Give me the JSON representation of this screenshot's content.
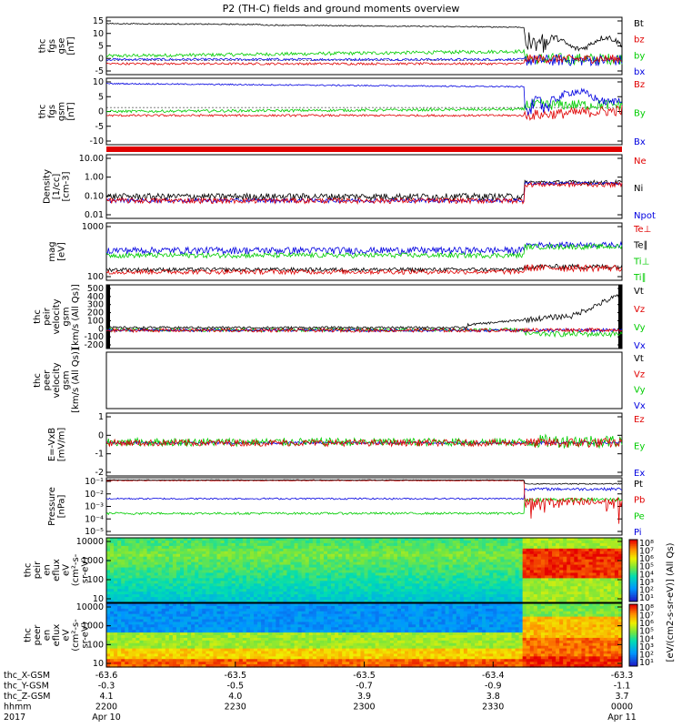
{
  "title": "P2 (TH-C) fields and ground moments overview",
  "colors": {
    "black": "#000000",
    "red": "#e00000",
    "green": "#00cc00",
    "blue": "#0000e0"
  },
  "panels": [
    {
      "id": "fgs-gse",
      "ylabel": [
        "thc",
        "fgs",
        "gse",
        "[nT]"
      ],
      "ticks": [
        "15",
        "10",
        "5",
        "0",
        "-5"
      ],
      "ylim": [
        -5,
        15
      ],
      "scale": "linear",
      "legend": [
        {
          "t": "Bt",
          "c": "black"
        },
        {
          "t": "bz",
          "c": "red"
        },
        {
          "t": "by",
          "c": "green"
        },
        {
          "t": "bx",
          "c": "blue"
        }
      ]
    },
    {
      "id": "fgs-gsm",
      "ylabel": [
        "thc",
        "fgs",
        "gsm",
        "[nT]"
      ],
      "ticks": [
        "10",
        "5",
        "0",
        "-5",
        "-10"
      ],
      "ylim": [
        -14,
        11
      ],
      "scale": "linear",
      "legend": [
        {
          "t": "Bz",
          "c": "red"
        },
        {
          "t": "By",
          "c": "green"
        },
        {
          "t": "Bx",
          "c": "blue"
        }
      ]
    },
    {
      "id": "density",
      "ylabel": [
        "Density",
        "[1/cc]",
        "[cm-3]"
      ],
      "ticks": [
        "10.00",
        "1.00",
        "0.10",
        "0.01"
      ],
      "ylim": [
        0.01,
        10
      ],
      "scale": "log",
      "legend": [
        {
          "t": "Ne",
          "c": "red"
        },
        {
          "t": "Ni",
          "c": "black"
        },
        {
          "t": "Npot",
          "c": "blue"
        }
      ]
    },
    {
      "id": "temp",
      "ylabel": [
        "mag",
        "[eV]"
      ],
      "ticks": [
        "1000",
        "100"
      ],
      "ylim": [
        40,
        4000
      ],
      "scale": "log",
      "legend": [
        {
          "t": "Te⊥",
          "c": "red"
        },
        {
          "t": "Te∥",
          "c": "black"
        },
        {
          "t": "Ti⊥",
          "c": "green"
        },
        {
          "t": "Ti∥",
          "c": "green"
        }
      ]
    },
    {
      "id": "peir-vel",
      "ylabel": [
        "thc",
        "peir",
        "velocity",
        "gsm",
        "[km/s (All Qs)]"
      ],
      "ticks": [
        "500",
        "400",
        "300",
        "200",
        "100",
        "0",
        "-100",
        "-200"
      ],
      "ylim": [
        -200,
        500
      ],
      "scale": "linear",
      "legend": [
        {
          "t": "Vt",
          "c": "black"
        },
        {
          "t": "Vz",
          "c": "red"
        },
        {
          "t": "Vy",
          "c": "green"
        },
        {
          "t": "Vx",
          "c": "blue"
        }
      ]
    },
    {
      "id": "peer-vel",
      "ylabel": [
        "thc",
        "peer",
        "velocity",
        "gsm",
        "[km/s (All Qs)]"
      ],
      "ticks": [],
      "ylim": [
        0,
        1
      ],
      "scale": "linear",
      "legend": [
        {
          "t": "Vt",
          "c": "black"
        },
        {
          "t": "Vz",
          "c": "red"
        },
        {
          "t": "Vy",
          "c": "green"
        },
        {
          "t": "Vx",
          "c": "blue"
        }
      ]
    },
    {
      "id": "efield",
      "ylabel": [
        "E=-VxB",
        "[mV/m]"
      ],
      "ticks": [
        "1",
        "0",
        "-1",
        "-2"
      ],
      "ylim": [
        -2,
        1.8
      ],
      "scale": "linear",
      "legend": [
        {
          "t": "Ez",
          "c": "red"
        },
        {
          "t": "Ey",
          "c": "green"
        },
        {
          "t": "Ex",
          "c": "blue"
        }
      ]
    },
    {
      "id": "pressure",
      "ylabel": [
        "Pressure",
        "[nPa]"
      ],
      "ticks": [
        "10⁻¹",
        "10⁻²",
        "10⁻³",
        "10⁻⁴",
        "10⁻⁵"
      ],
      "ylim": [
        5e-06,
        0.15
      ],
      "scale": "log",
      "legend": [
        {
          "t": "Pt",
          "c": "black"
        },
        {
          "t": "Pb",
          "c": "red"
        },
        {
          "t": "Pe",
          "c": "green"
        },
        {
          "t": "Pi",
          "c": "blue"
        }
      ]
    },
    {
      "id": "peir-spec",
      "ylabel": [
        "thc",
        "peir",
        "en",
        "eflux",
        "eV",
        "(cm²-s-",
        "sr-eV)"
      ],
      "ticks": [
        "10000",
        "1000",
        "100",
        "10"
      ],
      "scale": "log",
      "legend": []
    },
    {
      "id": "peer-spec",
      "ylabel": [
        "thc",
        "peer",
        "en",
        "eflux",
        "eV",
        "(cm²-s-",
        "sr-eV)"
      ],
      "ticks": [
        "10000",
        "1000",
        "100",
        "10"
      ],
      "scale": "log",
      "legend": []
    }
  ],
  "colorbar": {
    "label": "[eV/(cm2-s-sr-eV)] (All Qs)",
    "ticks": [
      "10⁸",
      "10⁷",
      "10⁶",
      "10⁵",
      "10⁴",
      "10³",
      "10²",
      "10¹"
    ]
  },
  "xaxis": {
    "rows": [
      {
        "label": "thc_X-GSM",
        "values": [
          "-63.6",
          "-63.5",
          "-63.5",
          "-63.4",
          "-63.3"
        ]
      },
      {
        "label": "thc_Y-GSM",
        "values": [
          "-0.3",
          "-0.5",
          "-0.7",
          "-0.9",
          "-1.1"
        ]
      },
      {
        "label": "thc_Z-GSM",
        "values": [
          "4.1",
          "4.0",
          "3.9",
          "3.8",
          "3.7"
        ]
      },
      {
        "label": "hhmm",
        "values": [
          "2200",
          "2230",
          "2300",
          "2330",
          "0000"
        ]
      },
      {
        "label": "2017",
        "values": [
          "Apr 10",
          "",
          "",
          "",
          "Apr 11"
        ]
      }
    ]
  },
  "chart_data": {
    "type": "line",
    "title": "P2 (TH-C) fields and ground moments overview",
    "x": [
      "2200",
      "2230",
      "2300",
      "2330",
      "0000"
    ],
    "series": [
      {
        "name": "Bt",
        "values": [
          13,
          12.5,
          12,
          8,
          6
        ]
      },
      {
        "name": "Ni",
        "values": [
          0.1,
          0.1,
          0.1,
          0.6,
          0.5
        ]
      },
      {
        "name": "Vt",
        "values": [
          20,
          25,
          30,
          150,
          400
        ]
      }
    ]
  }
}
